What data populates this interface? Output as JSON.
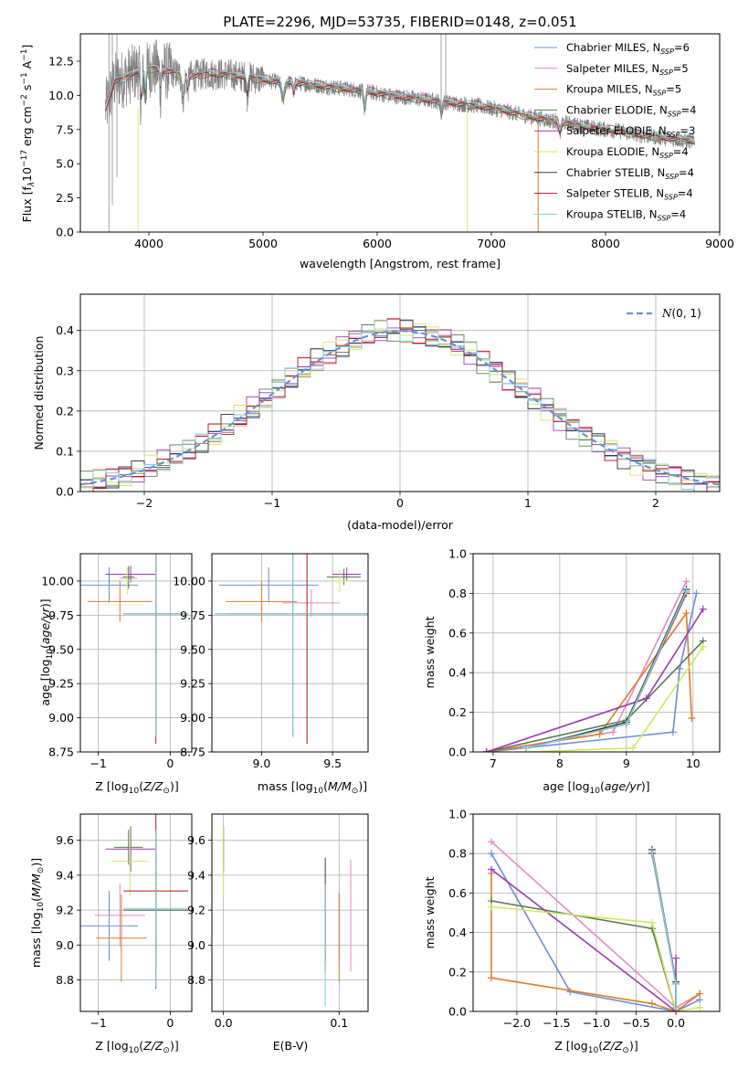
{
  "figure": {
    "title": "PLATE=2296, MJD=53735, FIBERID=0148, z=0.051",
    "colors": {
      "Chabrier MILES": "#6a8fd8",
      "Salpeter MILES": "#e48ac4",
      "Kroupa MILES": "#e07b29",
      "Chabrier ELODIE": "#5a7a5a",
      "Salpeter ELODIE": "#9b3ab0",
      "Kroupa ELODIE": "#cfe862",
      "Chabrier STELIB": "#3b3b3b",
      "Salpeter STELIB": "#b01818",
      "Kroupa STELIB": "#7ad4e0"
    }
  },
  "chart_data": [
    {
      "id": "spectrum",
      "type": "line",
      "xlabel": "wavelength [Angstrom, rest frame]",
      "ylabel": "Flux [f",
      "xlim": [
        3400,
        9000
      ],
      "ylim": [
        0,
        14.5
      ],
      "xticks": [
        "4000",
        "5000",
        "6000",
        "7000",
        "8000",
        "9000"
      ],
      "yticks": [
        "0.0",
        "2.5",
        "5.0",
        "7.5",
        "10.0",
        "12.5"
      ],
      "legend": "top-right",
      "grid": false,
      "series": [
        {
          "name": "Chabrier MILES",
          "nssp": "6"
        },
        {
          "name": "Salpeter MILES",
          "nssp": "5"
        },
        {
          "name": "Kroupa MILES",
          "nssp": "5"
        },
        {
          "name": "Chabrier ELODIE",
          "nssp": "4"
        },
        {
          "name": "Salpeter ELODIE",
          "nssp": "3"
        },
        {
          "name": "Kroupa ELODIE",
          "nssp": "4"
        },
        {
          "name": "Chabrier STELIB",
          "nssp": "4"
        },
        {
          "name": "Salpeter STELIB",
          "nssp": "4"
        },
        {
          "name": "Kroupa STELIB",
          "nssp": "4"
        }
      ],
      "continuum": {
        "x": [
          3620,
          3700,
          3800,
          3900,
          4000,
          4100,
          4200,
          4300,
          4400,
          4500,
          4700,
          4900,
          5100,
          5300,
          5500,
          5700,
          5900,
          6100,
          6300,
          6500,
          6700,
          6900,
          7100,
          7300,
          7500,
          7700,
          7900,
          8100,
          8300,
          8500,
          8700,
          8800
        ],
        "y": [
          9.0,
          11.0,
          11.3,
          11.8,
          12.0,
          11.9,
          11.7,
          11.4,
          11.4,
          11.6,
          11.5,
          11.3,
          11.0,
          10.9,
          10.7,
          10.5,
          10.3,
          10.0,
          9.8,
          9.6,
          9.4,
          9.2,
          8.9,
          8.5,
          8.2,
          7.9,
          7.6,
          7.4,
          7.1,
          6.9,
          6.7,
          6.6
        ]
      }
    },
    {
      "id": "residuals",
      "type": "histogram",
      "xlabel": "(data-model)/error",
      "ylabel": "Normed distribution",
      "xlim": [
        -2.5,
        2.5
      ],
      "ylim": [
        0,
        0.49
      ],
      "xticks": [
        "−2",
        "−1",
        "0",
        "1",
        "2"
      ],
      "yticks": [
        "0.0",
        "0.1",
        "0.2",
        "0.3",
        "0.4"
      ],
      "legend": "top-right",
      "legend_label": "N(0,1)",
      "grid": true,
      "bin_width": 0.1
    },
    {
      "id": "age-vs-Z",
      "type": "scatter",
      "xlabel": "Z [log10(Z/Z⊙)]",
      "ylabel": "age [log10(age/yr)]",
      "xlim": [
        -1.25,
        0.3
      ],
      "ylim": [
        8.75,
        10.2
      ],
      "xticks": [
        "−1",
        "0"
      ],
      "yticks": [
        "8.75",
        "9.00",
        "9.25",
        "9.50",
        "9.75",
        "10.00"
      ],
      "grid": true
    },
    {
      "id": "age-vs-mass",
      "type": "scatter",
      "xlabel": "mass [log10(M/M⊙)]",
      "ylabel": "",
      "xlim": [
        8.65,
        9.75
      ],
      "ylim": [
        8.75,
        10.2
      ],
      "xticks": [
        "9.0",
        "9.5"
      ],
      "yticks": [
        "8.75",
        "9.00",
        "9.25",
        "9.50",
        "9.75",
        "10.00"
      ],
      "grid": true
    },
    {
      "id": "weight-vs-age",
      "type": "line",
      "xlabel": "age [log10(age/yr)]",
      "ylabel": "mass weight",
      "xlim": [
        6.7,
        10.4
      ],
      "ylim": [
        0,
        1.0
      ],
      "xticks": [
        "7",
        "8",
        "9",
        "10"
      ],
      "yticks": [
        "0.0",
        "0.2",
        "0.4",
        "0.6",
        "0.8",
        "1.0"
      ],
      "grid": true
    },
    {
      "id": "mass-vs-Z",
      "type": "scatter",
      "xlabel": "Z [log10(Z/Z⊙)]",
      "ylabel": "mass [log10(M/M⊙)]",
      "xlim": [
        -1.25,
        0.3
      ],
      "ylim": [
        8.62,
        9.75
      ],
      "xticks": [
        "−1",
        "0"
      ],
      "yticks": [
        "8.8",
        "9.0",
        "9.2",
        "9.4",
        "9.6"
      ],
      "grid": true
    },
    {
      "id": "mass-vs-EBV",
      "type": "scatter",
      "xlabel": "E(B-V)",
      "ylabel": "",
      "xlim": [
        -0.01,
        0.125
      ],
      "ylim": [
        8.62,
        9.75
      ],
      "xticks": [
        "0.0",
        "0.1"
      ],
      "yticks": [
        "8.8",
        "9.0",
        "9.2",
        "9.4",
        "9.6"
      ],
      "grid": true
    },
    {
      "id": "weight-vs-Z",
      "type": "line",
      "xlabel": "Z [log10(Z/Z⊙)]",
      "ylabel": "mass weight",
      "xlim": [
        -2.55,
        0.55
      ],
      "ylim": [
        0,
        1.0
      ],
      "xticks": [
        "−2.0",
        "−1.5",
        "−1.0",
        "−0.5",
        "0.0"
      ],
      "yticks": [
        "0.0",
        "0.2",
        "0.4",
        "0.6",
        "0.8",
        "1.0"
      ],
      "grid": true
    }
  ]
}
